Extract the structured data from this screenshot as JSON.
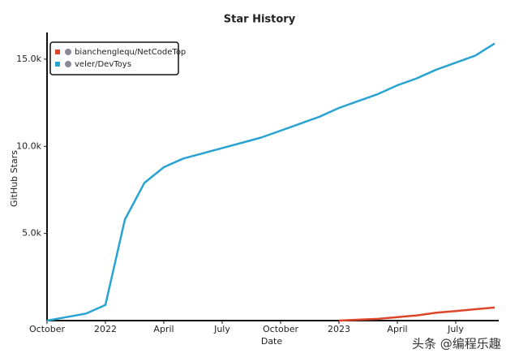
{
  "chart_data": {
    "type": "line",
    "title": "Star History",
    "x_label": "Date",
    "y_label": "GitHub Stars",
    "x": [
      "2021-10",
      "2021-11",
      "2021-12",
      "2022-01",
      "2022-02",
      "2022-03",
      "2022-04",
      "2022-05",
      "2022-06",
      "2022-07",
      "2022-08",
      "2022-09",
      "2022-10",
      "2022-11",
      "2022-12",
      "2023-01",
      "2023-02",
      "2023-03",
      "2023-04",
      "2023-05",
      "2023-06",
      "2023-07",
      "2023-08",
      "2023-09"
    ],
    "series": [
      {
        "name": "bianchenglequ/NetCodeTop",
        "color": "#dd4528",
        "values": [
          null,
          null,
          null,
          null,
          null,
          null,
          null,
          null,
          null,
          null,
          null,
          null,
          null,
          null,
          null,
          0,
          50,
          100,
          200,
          300,
          450,
          550,
          650,
          750
        ]
      },
      {
        "name": "veler/DevToys",
        "color": "#28a3d2",
        "values": [
          0,
          200,
          400,
          900,
          5800,
          7900,
          8800,
          9300,
          9600,
          9900,
          10200,
          10500,
          10900,
          11300,
          11700,
          12200,
          12600,
          13000,
          13500,
          13900,
          14400,
          14800,
          15200,
          15900
        ]
      }
    ],
    "xlim": [
      "2021-10",
      "2023-09"
    ],
    "xticks": [
      {
        "value": "2021-10",
        "label": "October"
      },
      {
        "value": "2022-01",
        "label": "2022"
      },
      {
        "value": "2022-04",
        "label": "April"
      },
      {
        "value": "2022-07",
        "label": "July"
      },
      {
        "value": "2022-10",
        "label": "October"
      },
      {
        "value": "2023-01",
        "label": "2023"
      },
      {
        "value": "2023-04",
        "label": "April"
      },
      {
        "value": "2023-07",
        "label": "July"
      }
    ],
    "ylim": [
      0,
      16300
    ],
    "yticks": [
      {
        "value": 5000,
        "label": "5.0k"
      },
      {
        "value": 10000,
        "label": "10.0k"
      },
      {
        "value": 15000,
        "label": "15.0k"
      }
    ],
    "legend": "top-left",
    "grid": false,
    "watermark": "头条 @编程乐趣"
  }
}
